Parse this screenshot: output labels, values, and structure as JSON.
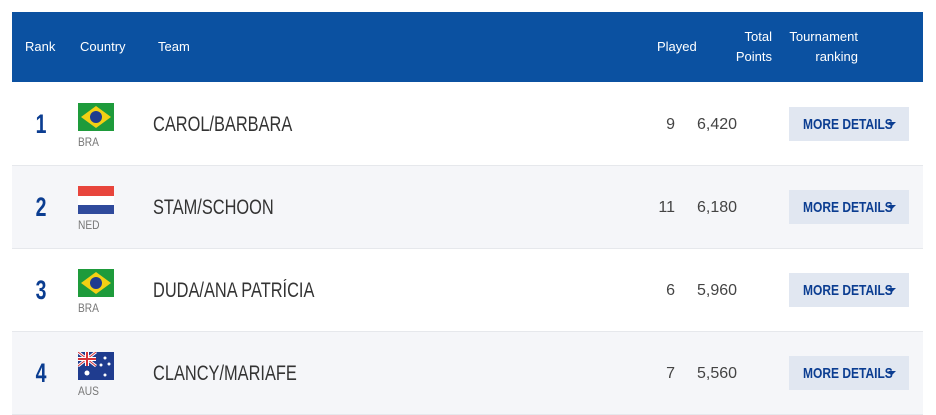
{
  "header": {
    "columns": [
      "Rank",
      "Country",
      "Team",
      "Played",
      "Total Points",
      "Tournament ranking"
    ]
  },
  "table": {
    "rows": [
      {
        "rank": 1,
        "country": "BRA",
        "team": "CAROL/BARBARA",
        "played": 9,
        "points": "6,420",
        "button": "MORE DETAILS"
      },
      {
        "rank": 2,
        "country": "NED",
        "team": "STAM/SCHOON",
        "played": 11,
        "points": "6,180",
        "button": "MORE DETAILS"
      },
      {
        "rank": 3,
        "country": "BRA",
        "team": "DUDA/ANA PATRÍCIA",
        "played": 6,
        "points": "5,960",
        "button": "MORE DETAILS"
      },
      {
        "rank": 4,
        "country": "AUS",
        "team": "CLANCY/MARIAFE",
        "played": 7,
        "points": "5,560",
        "button": "MORE DETAILS"
      }
    ]
  }
}
